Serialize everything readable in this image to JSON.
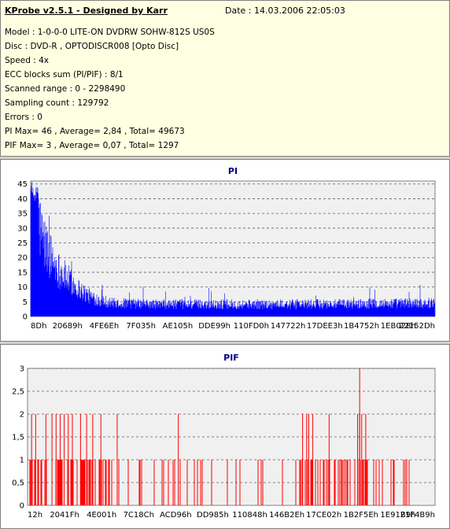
{
  "info": {
    "title": "KProbe v2.5.1 - Designed by Karr",
    "date": "Date : 14.03.2006 22:05:03",
    "lines": [
      "Model : 1-0-0-0 LITE-ON DVDRW SOHW-812S  US0S",
      "Disc : DVD-R , OPTODISCR008 [Opto Disc]",
      "Speed : 4x",
      "ECC blocks sum (PI/PIF) : 8/1",
      "Scanned range : 0 - 2298490",
      "Sampling count : 129792",
      "Errors : 0",
      "PI Max= 46 , Average= 2,84 , Total= 49673",
      "PIF Max= 3 , Average= 0,07 , Total= 1297"
    ]
  },
  "chart_data": [
    {
      "type": "area",
      "title": "PI",
      "color": "#0000ff",
      "ylim": [
        0,
        46
      ],
      "y_ticks": [
        "0",
        "5",
        "10",
        "15",
        "20",
        "25",
        "30",
        "35",
        "40",
        "45"
      ],
      "x_tick_labels": [
        "8Dh",
        "20689h",
        "4FE6Eh",
        "7F035h",
        "AE105h",
        "DDE99h",
        "110FD0h",
        "147722h",
        "17DEE3h",
        "1B4752h",
        "1EB028h",
        "22152Dh"
      ],
      "profile": [
        [
          0,
          46
        ],
        [
          0.01,
          42
        ],
        [
          0.02,
          35
        ],
        [
          0.03,
          28
        ],
        [
          0.05,
          22
        ],
        [
          0.07,
          17
        ],
        [
          0.09,
          14
        ],
        [
          0.12,
          10
        ],
        [
          0.15,
          7
        ],
        [
          0.2,
          5
        ],
        [
          0.3,
          4.5
        ],
        [
          0.5,
          4.5
        ],
        [
          0.75,
          4.5
        ],
        [
          1,
          5
        ]
      ],
      "max": 46,
      "average": 2.84,
      "total": 49673
    },
    {
      "type": "bar",
      "title": "PIF",
      "color": "#ff0000",
      "ylim": [
        0,
        3
      ],
      "y_ticks": [
        "0",
        "0,5",
        "1",
        "1,5",
        "2",
        "2,5",
        "3"
      ],
      "x_tick_labels": [
        "12h",
        "2041Fh",
        "4E001h",
        "7C18Ch",
        "ACD96h",
        "DD985h",
        "110848h",
        "146B2Eh",
        "17CE02h",
        "1B2F5Eh",
        "1E91B9h",
        "21F4B9h"
      ],
      "spikes_value_2": [
        0.01,
        0.02,
        0.045,
        0.06,
        0.07,
        0.08,
        0.09,
        0.1,
        0.11,
        0.13,
        0.145,
        0.16,
        0.18,
        0.22,
        0.37,
        0.675,
        0.685,
        0.69,
        0.7,
        0.74,
        0.81,
        0.815,
        0.82,
        0.83,
        0.83
      ],
      "spikes_value_3": [
        0.815
      ],
      "max": 3,
      "average": 0.07,
      "total": 1297
    }
  ]
}
